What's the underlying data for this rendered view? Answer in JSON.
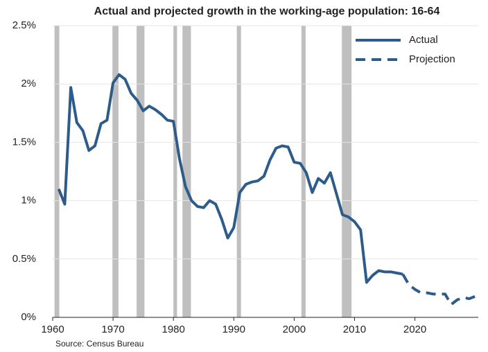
{
  "chart_data": {
    "type": "line",
    "title": "Actual and projected growth in the working-age population: 16-64",
    "source": "Source: Census Bureau",
    "xlim": [
      1960,
      2030.5
    ],
    "xticks": [
      1960,
      1970,
      1980,
      1990,
      2000,
      2010,
      2020
    ],
    "ylim": [
      0,
      2.5
    ],
    "yticks": [
      {
        "value": 0,
        "label": "0%"
      },
      {
        "value": 0.5,
        "label": "0.5%"
      },
      {
        "value": 1,
        "label": "1%"
      },
      {
        "value": 1.5,
        "label": "1.5%"
      },
      {
        "value": 2,
        "label": "2%"
      },
      {
        "value": 2.5,
        "label": "2.5%"
      }
    ],
    "grid": true,
    "legend": "upper right",
    "recession_color": "#bfbfbf",
    "recessions": [
      [
        1960.3,
        1961.1
      ],
      [
        1969.9,
        1970.9
      ],
      [
        1973.9,
        1975.2
      ],
      [
        1980.0,
        1980.6
      ],
      [
        1981.5,
        1982.9
      ],
      [
        1990.5,
        1991.2
      ],
      [
        2001.2,
        2001.9
      ],
      [
        2007.9,
        2009.5
      ]
    ],
    "series": [
      {
        "name": "Actual",
        "color": "#2e5c8a",
        "dash": false,
        "x": [
          1961,
          1962,
          1963,
          1964,
          1965,
          1966,
          1967,
          1968,
          1969,
          1970,
          1971,
          1972,
          1973,
          1974,
          1975,
          1976,
          1977,
          1978,
          1979,
          1980,
          1981,
          1982,
          1983,
          1984,
          1985,
          1986,
          1987,
          1988,
          1989,
          1990,
          1991,
          1992,
          1993,
          1994,
          1995,
          1996,
          1997,
          1998,
          1999,
          2000,
          2001,
          2002,
          2003,
          2004,
          2005,
          2006,
          2007,
          2008,
          2009,
          2010,
          2011,
          2012,
          2013,
          2014,
          2015,
          2016,
          2017,
          2018
        ],
        "values": [
          1.1,
          0.97,
          1.97,
          1.67,
          1.6,
          1.43,
          1.47,
          1.66,
          1.69,
          2.01,
          2.08,
          2.04,
          1.92,
          1.86,
          1.77,
          1.81,
          1.78,
          1.74,
          1.69,
          1.68,
          1.36,
          1.12,
          1.0,
          0.95,
          0.94,
          1.0,
          0.97,
          0.84,
          0.68,
          0.77,
          1.07,
          1.14,
          1.16,
          1.17,
          1.21,
          1.35,
          1.45,
          1.47,
          1.46,
          1.33,
          1.32,
          1.24,
          1.07,
          1.19,
          1.15,
          1.24,
          1.06,
          0.88,
          0.86,
          0.82,
          0.75,
          0.3,
          0.36,
          0.4,
          0.39,
          0.39,
          0.38,
          0.37
        ]
      },
      {
        "name": "Projection",
        "color": "#2e5c8a",
        "dash": true,
        "x": [
          2018,
          2019,
          2020,
          2021,
          2022,
          2023,
          2024,
          2025,
          2026,
          2027,
          2028,
          2029,
          2030
        ],
        "values": [
          0.37,
          0.28,
          0.24,
          0.21,
          0.21,
          0.2,
          0.2,
          0.2,
          0.11,
          0.15,
          0.17,
          0.16,
          0.18
        ]
      }
    ]
  }
}
